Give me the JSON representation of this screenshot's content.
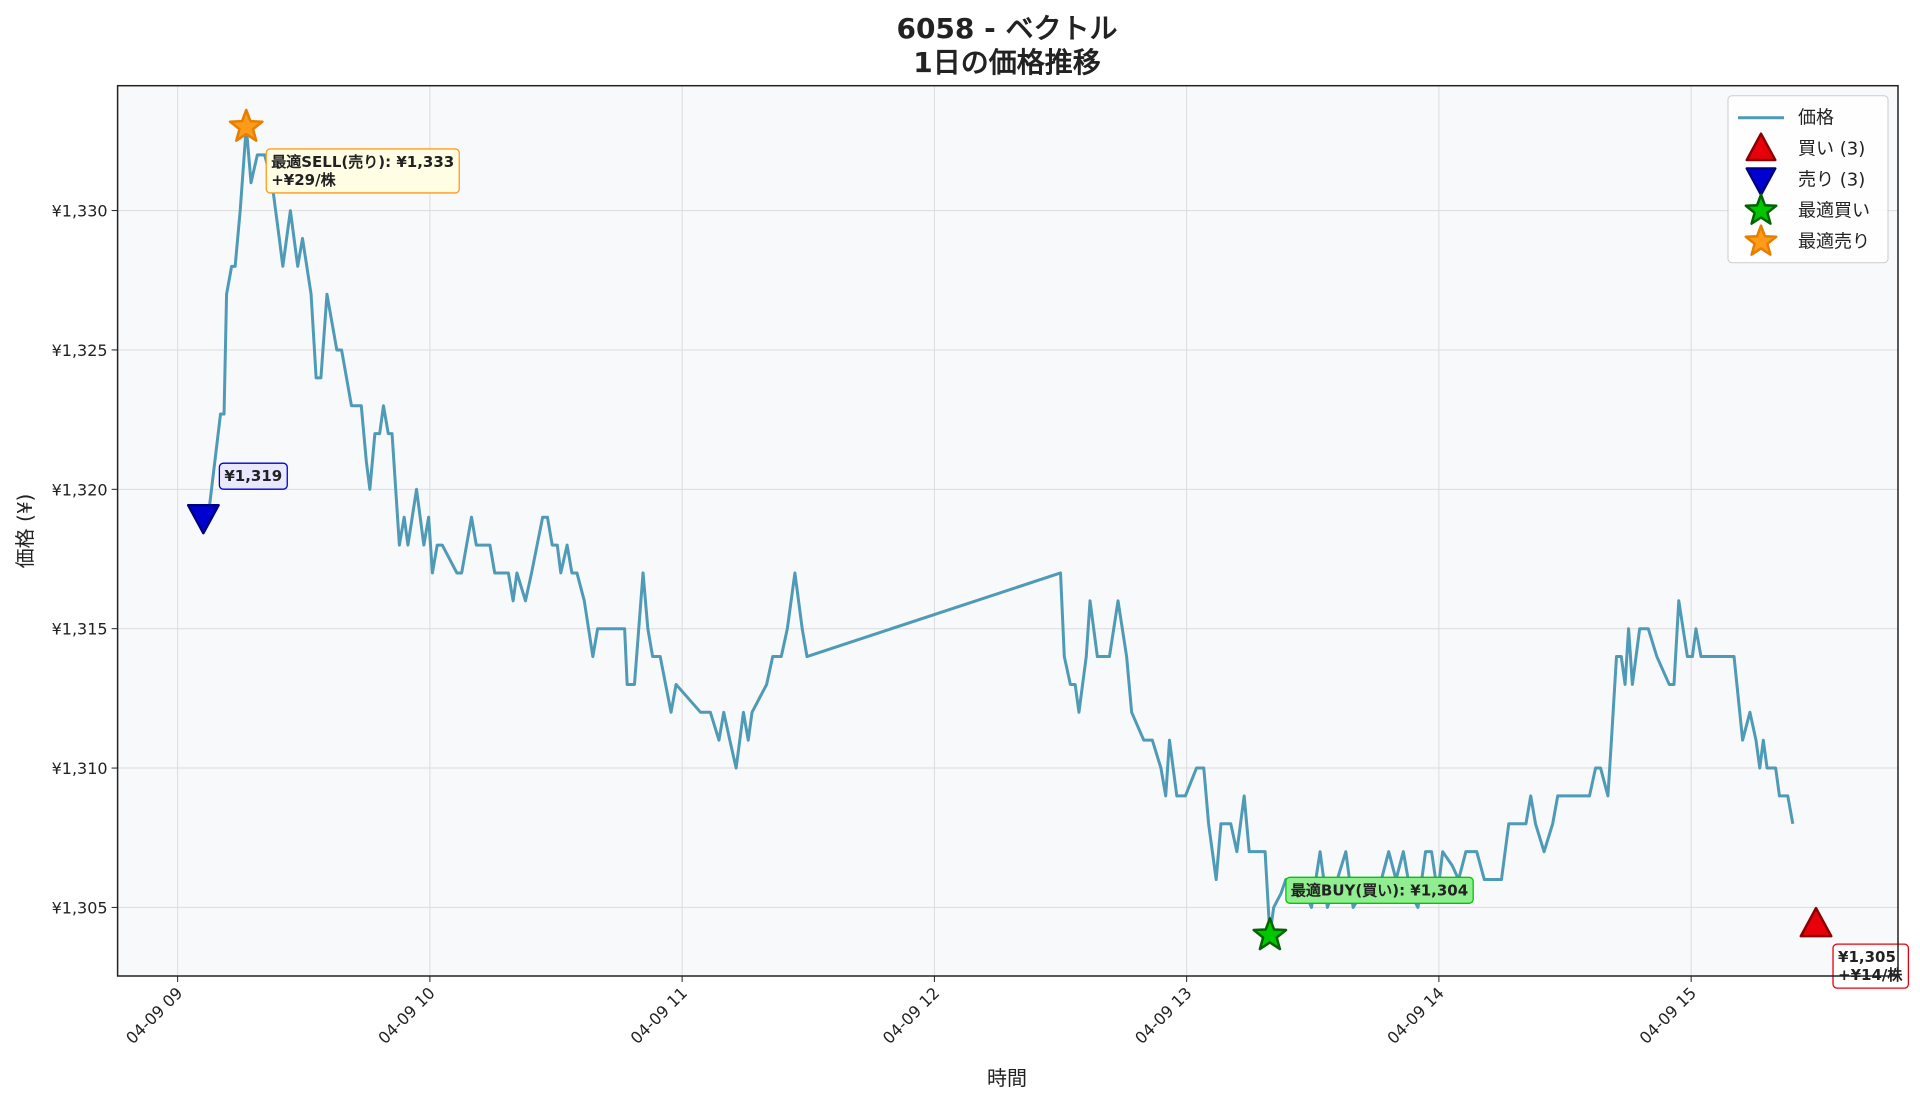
{
  "chart_data": {
    "type": "line",
    "title": "6058 - ベクトル",
    "subtitle": "1日の価格推移",
    "x_label": "時間",
    "y_label": "価格 (¥)",
    "xlim": [
      8.762,
      15.82
    ],
    "ylim": [
      1302.54,
      1334.48
    ],
    "xticks": [
      {
        "value": 9,
        "label": "04-09 09"
      },
      {
        "value": 10,
        "label": "04-09 10"
      },
      {
        "value": 11,
        "label": "04-09 11"
      },
      {
        "value": 12,
        "label": "04-09 12"
      },
      {
        "value": 13,
        "label": "04-09 13"
      },
      {
        "value": 14,
        "label": "04-09 14"
      },
      {
        "value": 15,
        "label": "04-09 15"
      }
    ],
    "yticks": [
      {
        "value": 1305,
        "label": "¥1,305"
      },
      {
        "value": 1310,
        "label": "¥1,310"
      },
      {
        "value": 1315,
        "label": "¥1,315"
      },
      {
        "value": 1320,
        "label": "¥1,320"
      },
      {
        "value": 1325,
        "label": "¥1,325"
      },
      {
        "value": 1330,
        "label": "¥1,330"
      }
    ],
    "grid": true,
    "legend": "upper right",
    "series": [
      {
        "name": "価格",
        "color": "#4f9ab6",
        "x": [
          9.083,
          9.121,
          9.17,
          9.184,
          9.194,
          9.214,
          9.228,
          9.248,
          9.272,
          9.291,
          9.316,
          9.345,
          9.374,
          9.403,
          9.417,
          9.447,
          9.476,
          9.495,
          9.529,
          9.549,
          9.568,
          9.592,
          9.631,
          9.65,
          9.689,
          9.728,
          9.748,
          9.762,
          9.782,
          9.801,
          9.816,
          9.835,
          9.85,
          9.879,
          9.898,
          9.913,
          9.947,
          9.976,
          9.995,
          10.01,
          10.029,
          10.049,
          10.107,
          10.126,
          10.165,
          10.184,
          10.238,
          10.257,
          10.311,
          10.33,
          10.345,
          10.379,
          10.403,
          10.447,
          10.466,
          10.485,
          10.505,
          10.519,
          10.544,
          10.563,
          10.583,
          10.612,
          10.646,
          10.665,
          10.772,
          10.782,
          10.811,
          10.845,
          10.864,
          10.883,
          10.913,
          10.956,
          10.976,
          11.073,
          11.112,
          11.146,
          11.165,
          11.189,
          11.214,
          11.243,
          11.262,
          11.277,
          11.335,
          11.359,
          11.393,
          11.417,
          11.447,
          11.476,
          11.495,
          12.5,
          12.515,
          12.539,
          12.558,
          12.573,
          12.602,
          12.617,
          12.646,
          12.694,
          12.728,
          12.762,
          12.782,
          12.83,
          12.864,
          12.898,
          12.917,
          12.932,
          12.961,
          12.995,
          13.039,
          13.068,
          13.087,
          13.117,
          13.136,
          13.175,
          13.199,
          13.228,
          13.248,
          13.311,
          13.33,
          13.345,
          13.374,
          13.393,
          13.442,
          13.471,
          13.495,
          13.529,
          13.558,
          13.597,
          13.631,
          13.66,
          13.694,
          13.733,
          13.772,
          13.801,
          13.83,
          13.859,
          13.888,
          13.917,
          13.947,
          13.971,
          13.995,
          14.015,
          14.053,
          14.078,
          14.107,
          14.15,
          14.18,
          14.248,
          14.277,
          14.345,
          14.364,
          14.383,
          14.417,
          14.451,
          14.471,
          14.597,
          14.621,
          14.641,
          14.67,
          14.684,
          14.704,
          14.723,
          14.738,
          14.752,
          14.767,
          14.796,
          14.83,
          14.864,
          14.913,
          14.932,
          14.951,
          14.985,
          15.005,
          15.019,
          15.039,
          15.15,
          15.17,
          15.204,
          15.233,
          15.257,
          15.272,
          15.286,
          15.301,
          15.335,
          15.35,
          15.383,
          15.403
        ],
        "values": [
          1318.7,
          1319,
          1322.7,
          1322.7,
          1327,
          1328,
          1328,
          1330,
          1333,
          1331,
          1332,
          1332,
          1331,
          1329,
          1328,
          1330,
          1328,
          1329,
          1327,
          1324,
          1324,
          1327,
          1325,
          1325,
          1323,
          1323,
          1321,
          1320,
          1322,
          1322,
          1323,
          1322,
          1322,
          1318,
          1319,
          1318,
          1320,
          1318,
          1319,
          1317,
          1318,
          1318,
          1317,
          1317,
          1319,
          1318,
          1318,
          1317,
          1317,
          1316,
          1317,
          1316,
          1317,
          1319,
          1319,
          1318,
          1318,
          1317,
          1318,
          1317,
          1317,
          1316,
          1314,
          1315,
          1315,
          1313,
          1313,
          1317,
          1315,
          1314,
          1314,
          1312,
          1313,
          1312,
          1312,
          1311,
          1312,
          1311,
          1310,
          1312,
          1311,
          1312,
          1313,
          1314,
          1314,
          1315,
          1317,
          1315,
          1314,
          1317,
          1314,
          1313,
          1313,
          1312,
          1314,
          1316,
          1314,
          1314,
          1316,
          1314,
          1312,
          1311,
          1311,
          1310,
          1309,
          1311,
          1309,
          1309,
          1310,
          1310,
          1308,
          1306,
          1308,
          1308,
          1307,
          1309,
          1307,
          1307,
          1304,
          1305,
          1305.5,
          1306,
          1306,
          1305.5,
          1305,
          1307,
          1305,
          1306,
          1307,
          1305,
          1305.5,
          1305.5,
          1306,
          1307,
          1306,
          1307,
          1305.5,
          1305,
          1307,
          1307,
          1305.5,
          1307,
          1306.5,
          1306,
          1307,
          1307,
          1306,
          1306,
          1308,
          1308,
          1309,
          1308,
          1307,
          1308,
          1309,
          1309,
          1310,
          1310,
          1309,
          1311,
          1314,
          1314,
          1313,
          1315,
          1313,
          1315,
          1315,
          1314,
          1313,
          1313,
          1316,
          1314,
          1314,
          1315,
          1314,
          1314,
          1314,
          1311,
          1312,
          1311,
          1310,
          1311,
          1310,
          1310,
          1309,
          1309,
          1308
        ]
      }
    ],
    "markers": [
      {
        "name": "買い (3)",
        "marker": "triangle-up",
        "color": "#e8000b",
        "edge": "#8b0000",
        "points": [
          {
            "x": 15.495,
            "y": 1304.4,
            "label": [
              "¥1,305",
              "+¥14/株"
            ]
          }
        ]
      },
      {
        "name": "売り (3)",
        "marker": "triangle-down",
        "color": "#0000d0",
        "edge": "#000080",
        "points": [
          {
            "x": 9.102,
            "y": 1319,
            "label": [
              "¥1,319"
            ]
          }
        ]
      },
      {
        "name": "最適買い",
        "marker": "star",
        "color": "#00c800",
        "edge": "#006400",
        "points": [
          {
            "x": 13.33,
            "y": 1304,
            "label": [
              "最適BUY(買い): ¥1,304"
            ]
          }
        ]
      },
      {
        "name": "最適売り",
        "marker": "star",
        "color": "#ff9a1a",
        "edge": "#e67e00",
        "points": [
          {
            "x": 9.272,
            "y": 1333,
            "label": [
              "最適SELL(売り): ¥1,333",
              "+¥29/株"
            ]
          }
        ]
      }
    ]
  }
}
